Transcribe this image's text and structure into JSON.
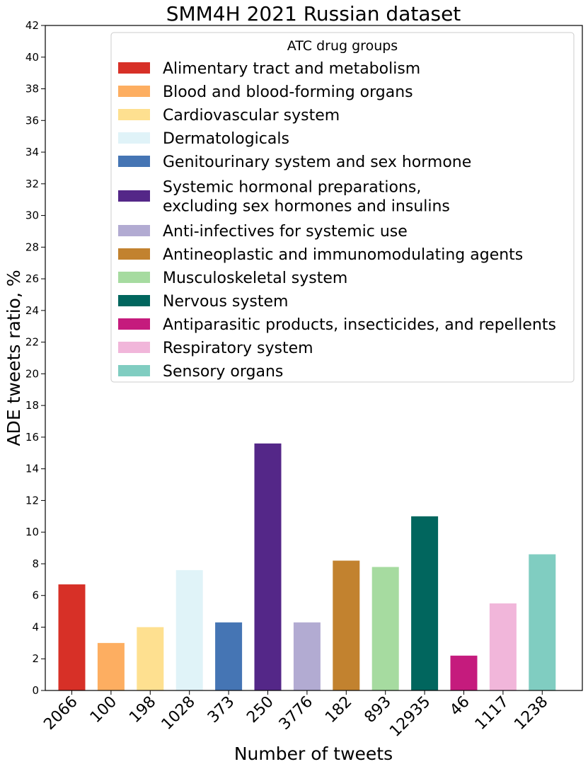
{
  "chart_data": {
    "type": "bar",
    "title": "SMM4H 2021 Russian dataset",
    "xlabel": "Number of tweets",
    "ylabel": "ADE tweets ratio, %",
    "ylim": [
      0,
      42
    ],
    "yticks": [
      "0",
      "2",
      "4",
      "6",
      "8",
      "10",
      "12",
      "14",
      "16",
      "18",
      "20",
      "22",
      "24",
      "26",
      "28",
      "30",
      "32",
      "34",
      "36",
      "38",
      "40",
      "42"
    ],
    "categories": [
      "2066",
      "100",
      "198",
      "1028",
      "373",
      "250",
      "3776",
      "182",
      "893",
      "12935",
      "46",
      "1117",
      "1238"
    ],
    "values": [
      6.7,
      3.0,
      4.0,
      7.6,
      4.3,
      15.6,
      4.3,
      8.2,
      7.8,
      11.0,
      2.2,
      5.5,
      8.6
    ],
    "colors": [
      "#d73027",
      "#fdae61",
      "#fee090",
      "#e0f3f8",
      "#4575b4",
      "#542788",
      "#b2abd2",
      "#c2822f",
      "#a6dba0",
      "#01665e",
      "#c51b7d",
      "#f1b6da",
      "#80cdc1"
    ],
    "grid": false,
    "legend": {
      "title": "ATC drug groups",
      "placement": "top-right",
      "entries": [
        [
          "Alimentary tract and metabolism"
        ],
        [
          "Blood and blood-forming organs"
        ],
        [
          "Cardiovascular system"
        ],
        [
          "Dermatologicals"
        ],
        [
          "Genitourinary system and sex hormone"
        ],
        [
          "Systemic hormonal preparations,",
          "excluding sex hormones and insulins"
        ],
        [
          "Anti-infectives for systemic use"
        ],
        [
          "Antineoplastic and immunomodulating agents"
        ],
        [
          "Musculoskeletal system"
        ],
        [
          "Nervous system"
        ],
        [
          "Antiparasitic products, insecticides, and repellents"
        ],
        [
          "Respiratory system"
        ],
        [
          "Sensory organs"
        ]
      ]
    }
  }
}
